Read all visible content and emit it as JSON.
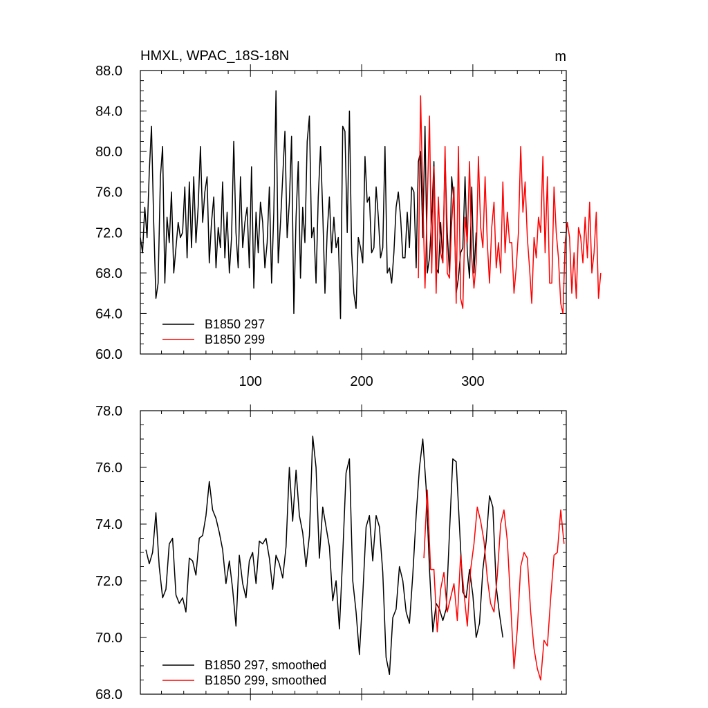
{
  "chart_data": [
    {
      "type": "line",
      "title": "HMXL, WPAC_18S-18N",
      "units": "m",
      "xlabel": "",
      "ylabel": "",
      "xlim": [
        1,
        384
      ],
      "ylim": [
        60,
        88
      ],
      "yticks": [
        "60.0",
        "64.0",
        "68.0",
        "72.0",
        "76.0",
        "80.0",
        "84.0",
        "88.0"
      ],
      "xticks": [
        "100",
        "200",
        "300"
      ],
      "grid": false,
      "legend_placement": "bottom-left",
      "series": [
        {
          "name": "B1850 297",
          "color": "#000000",
          "x_start": 1,
          "x_step": 2,
          "values": [
            71.5,
            70.0,
            74.5,
            71.5,
            78.0,
            82.5,
            73.0,
            65.5,
            67.0,
            77.5,
            80.5,
            67.0,
            73.5,
            71.0,
            76.0,
            68.0,
            70.5,
            73.0,
            71.5,
            72.0,
            76.5,
            69.5,
            77.0,
            70.5,
            77.5,
            71.0,
            74.5,
            80.5,
            73.0,
            76.0,
            77.5,
            69.0,
            73.0,
            75.5,
            68.5,
            72.5,
            70.5,
            77.0,
            69.5,
            74.0,
            68.0,
            71.5,
            81.0,
            72.0,
            68.5,
            77.5,
            70.5,
            73.0,
            74.5,
            68.5,
            78.5,
            66.5,
            74.0,
            70.0,
            75.0,
            73.0,
            68.5,
            71.0,
            76.5,
            67.0,
            74.0,
            86.0,
            69.0,
            73.0,
            77.5,
            82.0,
            71.5,
            75.0,
            81.5,
            64.0,
            73.5,
            79.0,
            67.5,
            74.5,
            71.0,
            81.0,
            83.5,
            71.5,
            72.5,
            67.0,
            75.5,
            80.5,
            74.0,
            66.0,
            72.0,
            75.5,
            70.0,
            73.5,
            70.5,
            71.5,
            63.5,
            82.5,
            82.0,
            72.0,
            84.0,
            70.0,
            66.0,
            64.5,
            71.5,
            70.5,
            69.0,
            79.5,
            75.0,
            75.5,
            70.0,
            70.5,
            76.5,
            73.5,
            69.5,
            70.5,
            80.5,
            68.0,
            68.5,
            67.0,
            70.0,
            74.5,
            76.0,
            73.5,
            69.5,
            69.5,
            74.0,
            70.5,
            76.5,
            76.0,
            68.5,
            79.0,
            80.0,
            71.5,
            82.5,
            68.0,
            69.5,
            73.5,
            79.0,
            68.5,
            68.0,
            73.0,
            69.0,
            79.5,
            72.0,
            68.0,
            77.5,
            75.0,
            66.0,
            67.5,
            70.0,
            70.5,
            77.5,
            70.0,
            67.5,
            76.5,
            68.0,
            72.0
          ]
        },
        {
          "name": "B1850 299",
          "color": "#ff0000",
          "x_start": 251,
          "x_step": 2,
          "values": [
            67.5,
            85.5,
            75.5,
            66.5,
            75.0,
            83.5,
            68.0,
            78.5,
            66.0,
            75.5,
            70.0,
            69.0,
            80.5,
            68.0,
            67.5,
            73.0,
            76.5,
            65.0,
            80.5,
            65.5,
            64.5,
            73.5,
            71.0,
            79.0,
            69.5,
            66.5,
            69.0,
            79.5,
            72.5,
            70.5,
            77.5,
            71.0,
            67.0,
            72.5,
            75.0,
            68.5,
            71.0,
            68.0,
            77.0,
            70.0,
            74.0,
            71.0,
            71.0,
            66.0,
            68.5,
            72.0,
            80.5,
            74.0,
            77.0,
            71.5,
            68.5,
            65.0,
            71.5,
            69.5,
            73.5,
            72.0,
            79.5,
            70.0,
            77.5,
            67.0,
            67.0,
            76.5,
            72.0,
            69.5,
            65.0,
            64.0,
            71.0,
            73.0,
            71.5,
            66.0,
            70.0,
            65.5,
            72.5,
            71.5,
            69.0,
            73.5,
            69.5,
            75.0,
            68.0,
            70.0,
            74.0,
            65.5,
            68.0
          ]
        }
      ]
    },
    {
      "type": "line",
      "title": "",
      "xlabel": "",
      "ylabel": "",
      "xlim": [
        1,
        384
      ],
      "ylim": [
        68,
        78
      ],
      "yticks": [
        "68.0",
        "70.0",
        "72.0",
        "74.0",
        "76.0",
        "78.0"
      ],
      "grid": false,
      "legend_placement": "bottom-left",
      "series": [
        {
          "name": "B1850 297, smoothed",
          "color": "#000000",
          "x_start": 6,
          "x_step": 3,
          "values": [
            73.1,
            72.6,
            73.0,
            74.4,
            72.5,
            71.4,
            71.7,
            73.3,
            73.5,
            71.5,
            71.2,
            71.4,
            70.9,
            72.8,
            72.7,
            72.2,
            73.5,
            73.6,
            74.3,
            75.5,
            74.5,
            74.2,
            73.7,
            73.1,
            71.9,
            72.7,
            71.7,
            70.4,
            72.9,
            71.9,
            71.4,
            72.7,
            73.0,
            71.9,
            73.4,
            73.3,
            73.5,
            72.8,
            71.7,
            72.9,
            72.6,
            72.1,
            73.2,
            76.0,
            74.1,
            75.9,
            74.3,
            73.7,
            72.5,
            73.6,
            77.1,
            76.0,
            72.8,
            74.6,
            73.9,
            73.2,
            71.3,
            72.0,
            70.3,
            72.9,
            75.8,
            76.3,
            72.0,
            70.9,
            69.4,
            71.5,
            73.9,
            74.3,
            72.7,
            74.3,
            73.9,
            72.3,
            69.3,
            68.7,
            70.7,
            71.0,
            72.5,
            72.0,
            70.9,
            70.5,
            72.2,
            74.3,
            76.0,
            77.0,
            75.3,
            72.4,
            70.2,
            71.2,
            71.0,
            70.6,
            71.0,
            73.7,
            76.3,
            76.2,
            73.9,
            71.6,
            71.4,
            72.4,
            71.5,
            70.0,
            70.5,
            72.4,
            73.4,
            75.0,
            74.6,
            71.8,
            70.8,
            70.0
          ]
        },
        {
          "name": "B1850 299, smoothed",
          "color": "#ff0000",
          "x_start": 256,
          "x_step": 3,
          "values": [
            72.8,
            75.2,
            72.4,
            72.4,
            70.2,
            71.7,
            72.3,
            70.9,
            71.4,
            71.9,
            70.6,
            72.9,
            71.6,
            70.4,
            72.4,
            73.3,
            74.6,
            74.1,
            73.4,
            72.1,
            71.2,
            70.9,
            72.2,
            74.0,
            74.5,
            73.4,
            71.2,
            68.9,
            70.3,
            72.5,
            73.0,
            72.8,
            70.9,
            69.6,
            68.9,
            68.5,
            69.9,
            69.7,
            71.4,
            72.9,
            73.0,
            74.5,
            73.3
          ]
        }
      ]
    }
  ]
}
